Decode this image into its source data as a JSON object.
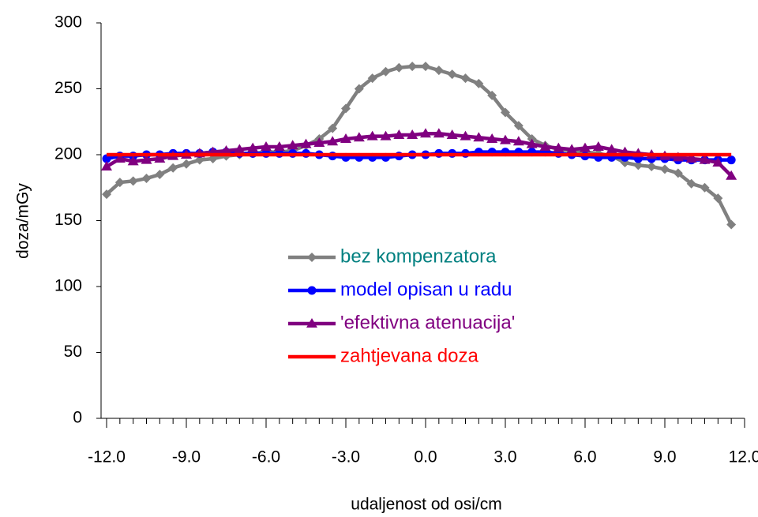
{
  "chart_data": {
    "type": "line",
    "xlabel": "udaljenost od osi/cm",
    "ylabel": "doza/mGy",
    "x": [
      -12,
      -11.5,
      -11,
      -10.5,
      -10,
      -9.5,
      -9,
      -8.5,
      -8,
      -7.5,
      -7,
      -6.5,
      -6,
      -5.5,
      -5,
      -4.5,
      -4,
      -3.5,
      -3,
      -2.5,
      -2,
      -1.5,
      -1,
      -0.5,
      0,
      0.5,
      1,
      1.5,
      2,
      2.5,
      3,
      3.5,
      4,
      4.5,
      5,
      5.5,
      6,
      6.5,
      7,
      7.5,
      8,
      8.5,
      9,
      9.5,
      10,
      10.5,
      11,
      11.5
    ],
    "series": [
      {
        "name": "bez kompenzatora",
        "color": "#808080",
        "text_color": "#008080",
        "marker": "diamond",
        "values": [
          170,
          179,
          180,
          182,
          185,
          190,
          193,
          196,
          197,
          199,
          200,
          201,
          202,
          202,
          203,
          207,
          212,
          220,
          235,
          250,
          258,
          263,
          266,
          267,
          267,
          264,
          261,
          258,
          254,
          245,
          232,
          222,
          212,
          207,
          204,
          203,
          202,
          201,
          199,
          194,
          192,
          191,
          189,
          186,
          178,
          175,
          167,
          147
        ]
      },
      {
        "name": "model opisan u radu",
        "color": "#0000ff",
        "text_color": "#0000ff",
        "marker": "circle",
        "values": [
          197,
          199,
          199,
          200,
          200,
          201,
          201,
          201,
          202,
          202,
          201,
          201,
          201,
          201,
          201,
          201,
          200,
          199,
          198,
          198,
          198,
          198,
          199,
          200,
          200,
          201,
          201,
          201,
          202,
          202,
          202,
          202,
          202,
          202,
          201,
          200,
          199,
          198,
          198,
          198,
          197,
          197,
          197,
          196,
          196,
          196,
          196,
          196
        ]
      },
      {
        "name": "'efektivna atenuacija'",
        "color": "#800080",
        "text_color": "#800080",
        "marker": "triangle",
        "values": [
          191,
          197,
          195,
          196,
          197,
          199,
          200,
          201,
          202,
          203,
          204,
          205,
          206,
          206,
          207,
          208,
          209,
          210,
          212,
          213,
          214,
          214,
          215,
          215,
          216,
          216,
          215,
          214,
          213,
          212,
          211,
          210,
          208,
          206,
          205,
          204,
          205,
          206,
          204,
          202,
          201,
          200,
          199,
          198,
          197,
          196,
          194,
          184
        ]
      },
      {
        "name": "zahtjevana doza",
        "color": "#ff0000",
        "text_color": "#ff0000",
        "marker": "none",
        "values": [
          200,
          200,
          200,
          200,
          200,
          200,
          200,
          200,
          200,
          200,
          200,
          200,
          200,
          200,
          200,
          200,
          200,
          200,
          200,
          200,
          200,
          200,
          200,
          200,
          200,
          200,
          200,
          200,
          200,
          200,
          200,
          200,
          200,
          200,
          200,
          200,
          200,
          200,
          200,
          200,
          200,
          200,
          200,
          200,
          200,
          200,
          200,
          200
        ]
      }
    ],
    "xlim": [
      -12,
      12
    ],
    "xticks": [
      {
        "value": -12,
        "label": "-12.0"
      },
      {
        "value": -9,
        "label": "-9.0"
      },
      {
        "value": -6,
        "label": "-6.0"
      },
      {
        "value": -3,
        "label": "-3.0"
      },
      {
        "value": 0,
        "label": "0.0"
      },
      {
        "value": 3,
        "label": "3.0"
      },
      {
        "value": 6,
        "label": "6.0"
      },
      {
        "value": 9,
        "label": "9.0"
      },
      {
        "value": 12,
        "label": "12.0"
      }
    ],
    "ylim": [
      0,
      300
    ],
    "yticks": [
      0,
      50,
      100,
      150,
      200,
      250,
      300
    ],
    "grid": false,
    "legend_position": "center"
  }
}
